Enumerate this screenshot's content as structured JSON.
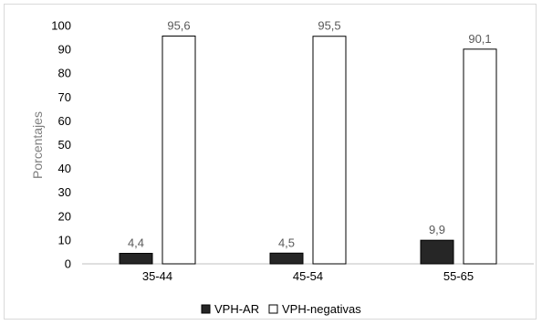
{
  "chart_data": {
    "type": "bar",
    "categories": [
      "35-44",
      "45-54",
      "55-65"
    ],
    "series": [
      {
        "name": "VPH-AR",
        "values": [
          4.4,
          4.5,
          9.9
        ],
        "labels": [
          "4,4",
          "4,5",
          "9,9"
        ],
        "fill": "#262626",
        "stroke": "#000000"
      },
      {
        "name": "VPH-negativas",
        "values": [
          95.6,
          95.5,
          90.1
        ],
        "labels": [
          "95,6",
          "95,5",
          "90,1"
        ],
        "fill": "#ffffff",
        "stroke": "#000000"
      }
    ],
    "ylabel": "Porcentajes",
    "ylim": [
      0,
      100
    ],
    "yticks": [
      0,
      10,
      20,
      30,
      40,
      50,
      60,
      70,
      80,
      90,
      100
    ],
    "grid": false,
    "legend_position": "bottom"
  }
}
